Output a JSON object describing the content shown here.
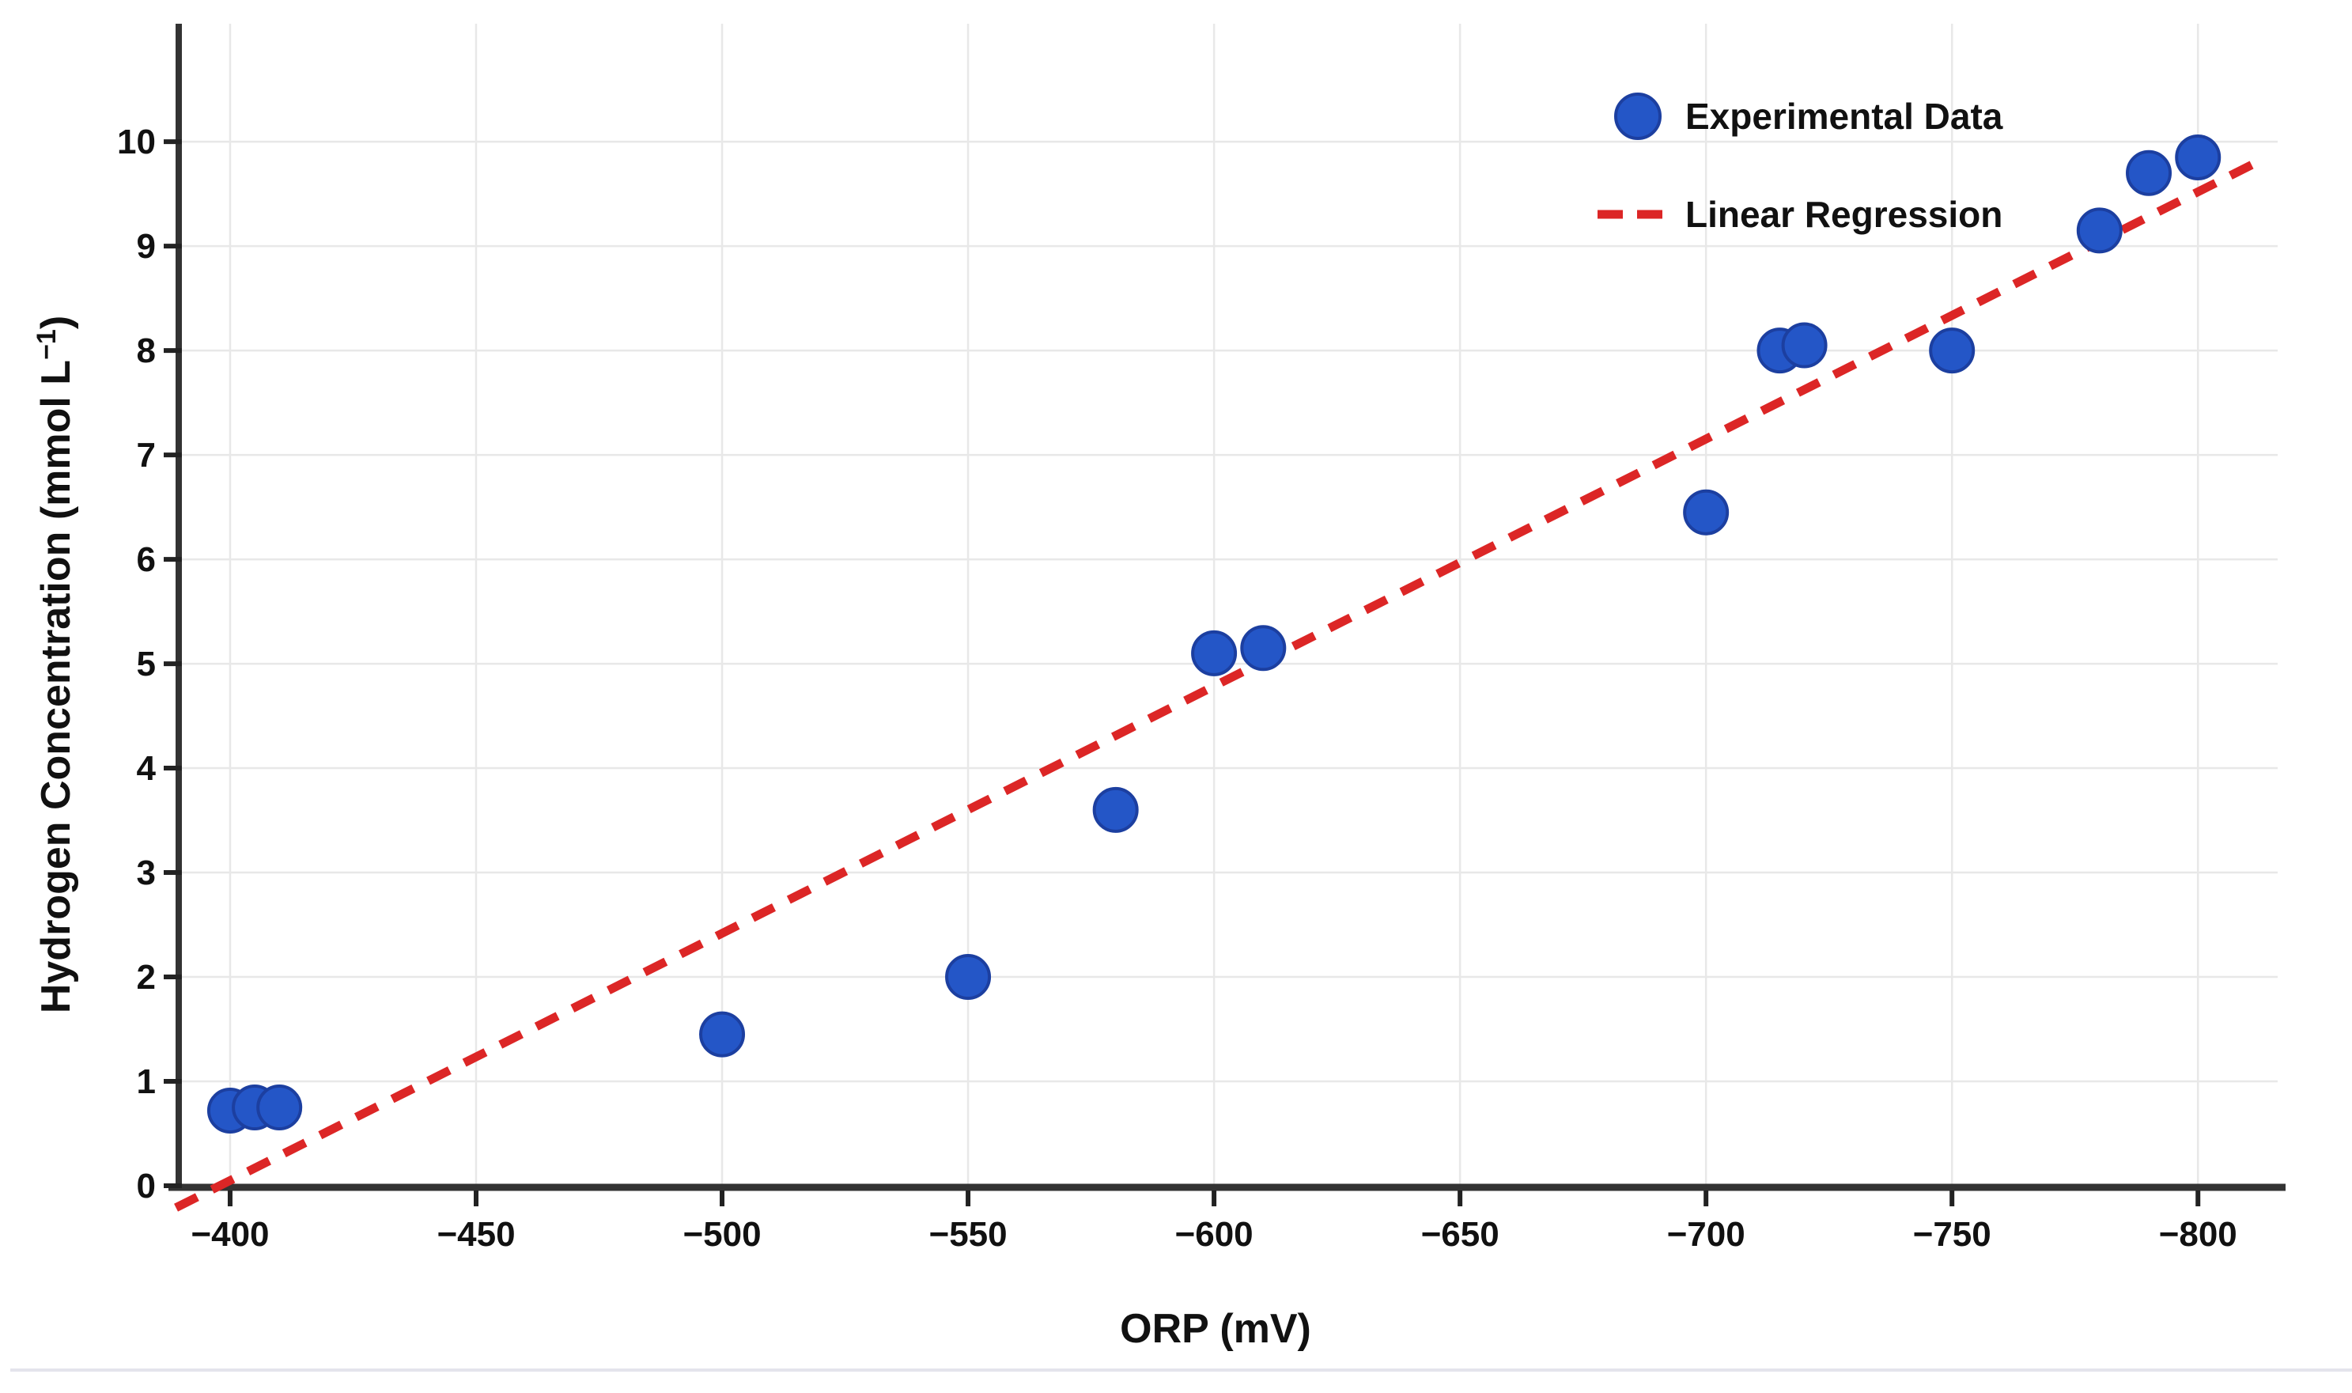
{
  "chart_data": {
    "type": "scatter",
    "title": "",
    "xlabel": "ORP (mV)",
    "ylabel": "Hydrogen Concentration (mmol L⁻¹)",
    "ylabel_parts": {
      "pre": "Hydrogen Concentration (mmol L",
      "sup": "−1",
      "post": ")"
    },
    "x_axis_reversed": true,
    "xlim": [
      -390.2,
      -816.2
    ],
    "ylim": [
      0,
      11.13
    ],
    "grid": true,
    "legend_position": "top-right",
    "x_ticks": [
      {
        "value": -400,
        "label": "−400"
      },
      {
        "value": -450,
        "label": "−450"
      },
      {
        "value": -500,
        "label": "−500"
      },
      {
        "value": -550,
        "label": "−550"
      },
      {
        "value": -600,
        "label": "−600"
      },
      {
        "value": -650,
        "label": "−650"
      },
      {
        "value": -700,
        "label": "−700"
      },
      {
        "value": -750,
        "label": "−750"
      },
      {
        "value": -800,
        "label": "−800"
      }
    ],
    "y_ticks": [
      {
        "value": 0,
        "label": "0"
      },
      {
        "value": 1,
        "label": "1"
      },
      {
        "value": 2,
        "label": "2"
      },
      {
        "value": 3,
        "label": "3"
      },
      {
        "value": 4,
        "label": "4"
      },
      {
        "value": 5,
        "label": "5"
      },
      {
        "value": 6,
        "label": "6"
      },
      {
        "value": 7,
        "label": "7"
      },
      {
        "value": 8,
        "label": "8"
      },
      {
        "value": 9,
        "label": "9"
      },
      {
        "value": 10,
        "label": "10"
      }
    ],
    "series": [
      {
        "name": "Experimental Data",
        "type": "scatter",
        "marker": "circle",
        "color": "#2456c7",
        "edge_color": "#1c3fa0",
        "points": [
          {
            "x": -400,
            "y": 0.72
          },
          {
            "x": -405,
            "y": 0.75
          },
          {
            "x": -410,
            "y": 0.75
          },
          {
            "x": -500,
            "y": 1.45
          },
          {
            "x": -550,
            "y": 2.0
          },
          {
            "x": -580,
            "y": 3.6
          },
          {
            "x": -600,
            "y": 5.1
          },
          {
            "x": -610,
            "y": 5.15
          },
          {
            "x": -700,
            "y": 6.45
          },
          {
            "x": -715,
            "y": 8.0
          },
          {
            "x": -720,
            "y": 8.05
          },
          {
            "x": -750,
            "y": 8.0
          },
          {
            "x": -780,
            "y": 9.15
          },
          {
            "x": -790,
            "y": 9.7
          },
          {
            "x": -800,
            "y": 9.85
          }
        ]
      },
      {
        "name": "Linear Regression",
        "type": "line",
        "style": "dashed",
        "color": "#dc2626",
        "endpoints": [
          {
            "x": -389,
            "y": -0.21
          },
          {
            "x": -811,
            "y": 9.78
          }
        ]
      }
    ],
    "colors": {
      "grid": "#e8e8e8",
      "spine": "#333333",
      "tick": "#222222",
      "text": "#111111",
      "page_divider": "#e4e4ec"
    }
  }
}
